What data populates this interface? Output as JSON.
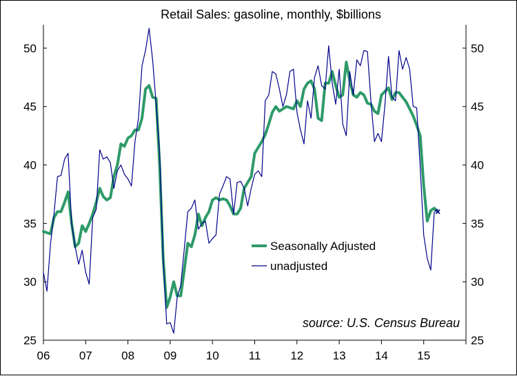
{
  "chart_data": {
    "type": "line",
    "title": "Retail Sales: gasoline, monthly, $billions",
    "annotation": "source: U.S. Census Bureau",
    "xlabel": "",
    "ylabel": "",
    "ylim": [
      25,
      52
    ],
    "yticks": [
      25,
      30,
      35,
      40,
      45,
      50
    ],
    "x_tick_labels": [
      "06",
      "07",
      "08",
      "09",
      "10",
      "11",
      "12",
      "13",
      "14",
      "15"
    ],
    "x_start": "2006-01",
    "x_end_label_span": [
      "2006-01",
      "2015-12"
    ],
    "grid": false,
    "right_axis": true,
    "legend_position": "center-right",
    "series": [
      {
        "name": "Seasonally Adjusted",
        "color": "#2e9a68",
        "stroke": "thick",
        "values": [
          34.3,
          34.2,
          34.1,
          35.5,
          36.0,
          36.0,
          36.8,
          37.7,
          35.0,
          33.0,
          33.3,
          34.8,
          34.3,
          35.0,
          35.8,
          36.8,
          38.0,
          37.3,
          37.0,
          37.2,
          39.0,
          40.0,
          41.8,
          41.6,
          42.3,
          42.5,
          43.0,
          43.0,
          44.0,
          46.5,
          46.8,
          45.8,
          45.7,
          40.0,
          32.0,
          27.8,
          28.7,
          30.0,
          28.8,
          28.8,
          31.0,
          33.3,
          33.0,
          34.0,
          35.8,
          34.8,
          35.5,
          36.0,
          37.0,
          37.2,
          37.0,
          37.1,
          37.0,
          36.5,
          35.8,
          35.8,
          36.3,
          38.0,
          38.5,
          39.0,
          41.0,
          41.5,
          42.0,
          42.6,
          43.5,
          44.5,
          45.0,
          44.6,
          44.8,
          45.0,
          44.9,
          44.8,
          45.5,
          45.0,
          46.5,
          47.0,
          47.2,
          46.5,
          44.0,
          43.8,
          47.0,
          47.0,
          48.0,
          46.8,
          45.8,
          46.0,
          48.8,
          47.2,
          46.0,
          45.8,
          46.2,
          46.0,
          45.3,
          45.2,
          44.6,
          44.4,
          46.0,
          46.3,
          46.6,
          45.6,
          46.2,
          46.2,
          45.8,
          45.4,
          44.8,
          44.2,
          43.4,
          42.5,
          38.2,
          35.2,
          36.1,
          36.3,
          36.0
        ],
        "end_marker": "x"
      },
      {
        "name": "unadjusted",
        "color": "#00008b",
        "stroke": "thin",
        "values": [
          30.8,
          29.2,
          33.2,
          35.8,
          39.0,
          39.1,
          40.5,
          41.0,
          35.0,
          33.0,
          31.5,
          32.7,
          30.8,
          29.8,
          35.5,
          36.2,
          41.3,
          40.5,
          40.7,
          40.2,
          38.0,
          39.5,
          40.0,
          39.2,
          38.8,
          38.2,
          42.0,
          44.0,
          48.5,
          49.8,
          51.7,
          49.0,
          45.2,
          41.0,
          32.0,
          26.4,
          26.5,
          25.6,
          28.7,
          29.7,
          32.8,
          36.0,
          36.3,
          37.0,
          34.5,
          35.0,
          35.2,
          33.3,
          33.7,
          34.0,
          37.5,
          38.2,
          39.0,
          38.8,
          35.8,
          38.5,
          38.6,
          38.0,
          36.5,
          38.0,
          39.2,
          39.5,
          39.0,
          45.5,
          46.0,
          48.0,
          47.8,
          46.5,
          45.0,
          46.0,
          48.0,
          48.2,
          44.5,
          43.0,
          41.8,
          45.5,
          44.0,
          47.5,
          48.5,
          46.8,
          46.5,
          50.2,
          47.0,
          45.2,
          48.2,
          43.5,
          42.5,
          48.0,
          46.0,
          49.0,
          48.5,
          49.8,
          49.7,
          45.5,
          42.0,
          42.7,
          42.0,
          45.2,
          49.3,
          45.8,
          45.5,
          49.8,
          48.2,
          49.2,
          48.2,
          45.0,
          44.9,
          39.8,
          34.0,
          32.0,
          31.0,
          36.0,
          36.2
        ]
      }
    ]
  }
}
